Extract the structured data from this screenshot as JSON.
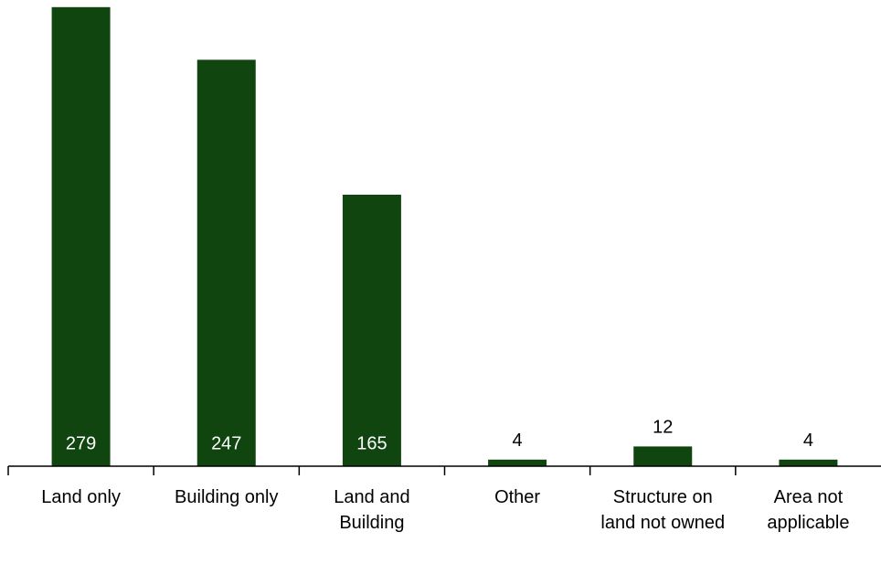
{
  "chart_data": {
    "type": "bar",
    "categories": [
      "Land only",
      "Building only",
      "Land and Building",
      "Other",
      "Structure on land not owned",
      "Area not applicable"
    ],
    "values": [
      279,
      247,
      165,
      4,
      12,
      4
    ],
    "color": "#10450f",
    "ylim": [
      0,
      280
    ]
  }
}
